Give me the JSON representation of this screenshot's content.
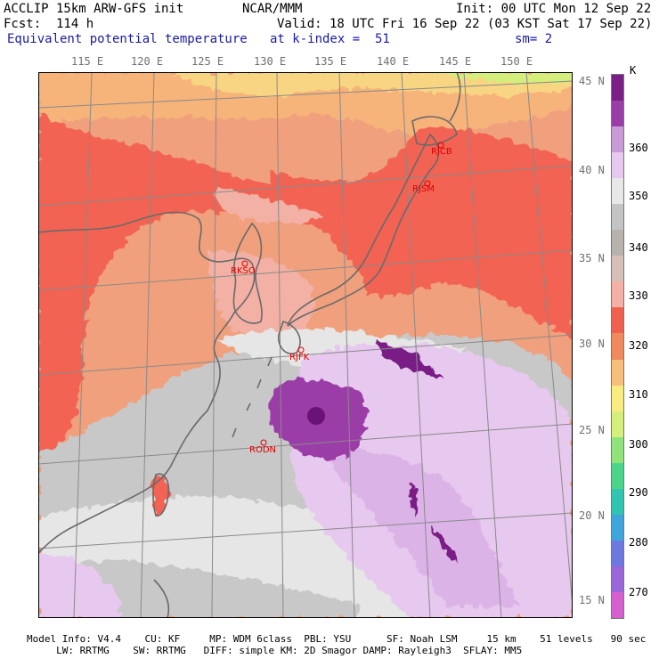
{
  "header": {
    "line1_left": "ACCLIP 15km ARW-GFS init",
    "line1_center": "NCAR/MMM",
    "line1_right": "Init: 00 UTC Mon 12 Sep 22",
    "line2_left": "Fcst:  114 h",
    "line2_right": "Valid: 18 UTC Fri 16 Sep 22 (03 KST Sat 17 Sep 22)",
    "line3_left": "Equivalent potential temperature",
    "line3_center": "at k-index =  51",
    "line3_right": "sm= 2"
  },
  "lon_labels": [
    "115 E",
    "120 E",
    "125 E",
    "130 E",
    "135 E",
    "140 E",
    "145 E",
    "150 E"
  ],
  "lat_labels": [
    "45 N",
    "40 N",
    "35 N",
    "30 N",
    "25 N",
    "20 N",
    "15 N"
  ],
  "colorbar": {
    "unit": "K",
    "labels": [
      "360",
      "350",
      "340",
      "330",
      "320",
      "310",
      "300",
      "290",
      "280",
      "270"
    ],
    "colors": [
      "#7a1f86",
      "#9b3da6",
      "#c89bd6",
      "#e7c8ee",
      "#e8e8e8",
      "#c4c4c4",
      "#b7b2ad",
      "#d4c0b8",
      "#f2b1a4",
      "#f0604e",
      "#f08a5e",
      "#f6c07a",
      "#f9ec80",
      "#d6ee7c",
      "#8fe37a",
      "#4bd58a",
      "#31c4b0",
      "#3fa6db",
      "#6d78e0",
      "#9b66d8",
      "#d55fcf"
    ]
  },
  "stations": [
    {
      "id": "RJCB"
    },
    {
      "id": "RJSM"
    },
    {
      "id": "RKSO"
    },
    {
      "id": "RJFK"
    },
    {
      "id": "RODN"
    }
  ],
  "footer": {
    "line1": "Model Info: V4.4    CU: KF     MP: WDM 6class  PBL: YSU      SF: Noah LSM     15 km    51 levels   90 sec",
    "line2": "     LW: RRTMG    SW: RRTMG   DIFF: simple KM: 2D Smagor DAMP: Rayleigh3  SFLAY: MM5"
  }
}
